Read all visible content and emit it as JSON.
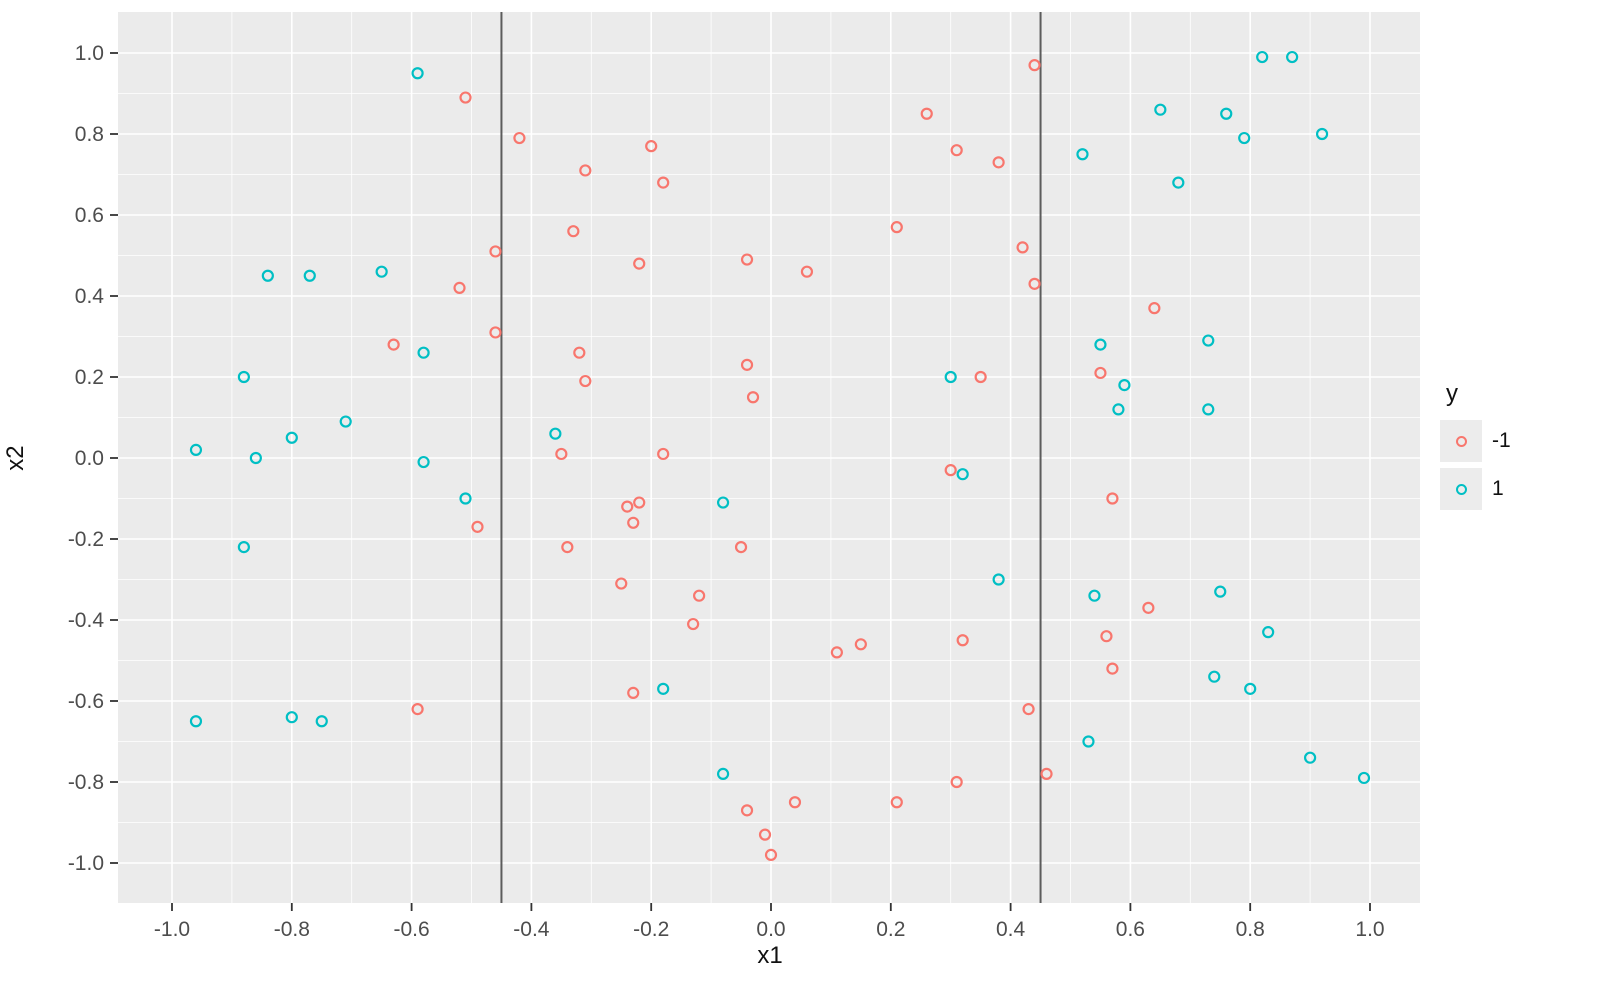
{
  "chart_data": {
    "type": "scatter",
    "title": "",
    "xlabel": "x1",
    "ylabel": "x2",
    "xlim": [
      -1.09,
      1.09
    ],
    "ylim": [
      -1.1,
      1.1
    ],
    "grid": "major and minor white gridlines on gray panel",
    "legend_position": "right",
    "legend": {
      "title": "y",
      "entries": [
        {
          "label": "-1",
          "color": "#F8766D"
        },
        {
          "label": "1",
          "color": "#00BFC4"
        }
      ]
    },
    "x_ticks": {
      "values": [
        -1.0,
        -0.8,
        -0.6,
        -0.4,
        -0.2,
        0.0,
        0.2,
        0.4,
        0.6,
        0.8,
        1.0
      ],
      "labels": [
        "-1.0",
        "-0.8",
        "-0.6",
        "-0.4",
        "-0.2",
        "0.0",
        "0.2",
        "0.4",
        "0.6",
        "0.8",
        "1.0"
      ]
    },
    "y_ticks": {
      "values": [
        -1.0,
        -0.8,
        -0.6,
        -0.4,
        -0.2,
        0.0,
        0.2,
        0.4,
        0.6,
        0.8,
        1.0
      ],
      "labels": [
        "-1.0",
        "-0.8",
        "-0.6",
        "-0.4",
        "-0.2",
        "0.0",
        "0.2",
        "0.4",
        "0.6",
        "0.8",
        "1.0"
      ]
    },
    "vlines": [
      {
        "x": -0.45,
        "color": "#5c5c5c"
      },
      {
        "x": 0.45,
        "color": "#5c5c5c"
      }
    ],
    "series": [
      {
        "name": "-1",
        "color": "#F8766D",
        "points": [
          [
            -0.51,
            0.89
          ],
          [
            -0.42,
            0.79
          ],
          [
            -0.46,
            0.51
          ],
          [
            -0.52,
            0.42
          ],
          [
            0.26,
            0.85
          ],
          [
            0.31,
            0.76
          ],
          [
            -0.2,
            0.77
          ],
          [
            -0.31,
            0.71
          ],
          [
            -0.18,
            0.68
          ],
          [
            -0.33,
            0.56
          ],
          [
            0.21,
            0.57
          ],
          [
            -0.22,
            0.48
          ],
          [
            -0.04,
            0.49
          ],
          [
            0.06,
            0.46
          ],
          [
            0.44,
            0.97
          ],
          [
            0.38,
            0.73
          ],
          [
            0.42,
            0.52
          ],
          [
            0.44,
            0.43
          ],
          [
            -0.63,
            0.28
          ],
          [
            -0.46,
            0.31
          ],
          [
            -0.49,
            -0.17
          ],
          [
            -0.32,
            0.26
          ],
          [
            -0.31,
            0.19
          ],
          [
            -0.04,
            0.23
          ],
          [
            -0.03,
            0.15
          ],
          [
            0.35,
            0.2
          ],
          [
            -0.18,
            0.01
          ],
          [
            -0.35,
            0.01
          ],
          [
            -0.22,
            -0.11
          ],
          [
            -0.24,
            -0.12
          ],
          [
            -0.23,
            -0.16
          ],
          [
            -0.34,
            -0.22
          ],
          [
            -0.05,
            -0.22
          ],
          [
            -0.25,
            -0.31
          ],
          [
            0.3,
            -0.03
          ],
          [
            0.64,
            0.37
          ],
          [
            0.55,
            0.21
          ],
          [
            0.57,
            -0.1
          ],
          [
            -0.59,
            -0.62
          ],
          [
            -0.12,
            -0.34
          ],
          [
            -0.13,
            -0.41
          ],
          [
            -0.23,
            -0.58
          ],
          [
            0.15,
            -0.46
          ],
          [
            0.11,
            -0.48
          ],
          [
            0.32,
            -0.45
          ],
          [
            -0.04,
            -0.87
          ],
          [
            0.04,
            -0.85
          ],
          [
            -0.01,
            -0.93
          ],
          [
            0.0,
            -0.98
          ],
          [
            0.21,
            -0.85
          ],
          [
            0.31,
            -0.8
          ],
          [
            0.63,
            -0.37
          ],
          [
            0.56,
            -0.44
          ],
          [
            0.57,
            -0.52
          ],
          [
            0.43,
            -0.62
          ],
          [
            0.46,
            -0.78
          ]
        ]
      },
      {
        "name": "1",
        "color": "#00BFC4",
        "points": [
          [
            -0.59,
            0.95
          ],
          [
            -0.84,
            0.45
          ],
          [
            -0.77,
            0.45
          ],
          [
            -0.65,
            0.46
          ],
          [
            0.82,
            0.99
          ],
          [
            0.87,
            0.99
          ],
          [
            0.65,
            0.86
          ],
          [
            0.76,
            0.85
          ],
          [
            0.92,
            0.8
          ],
          [
            0.79,
            0.79
          ],
          [
            0.52,
            0.75
          ],
          [
            0.68,
            0.68
          ],
          [
            -0.88,
            0.2
          ],
          [
            -0.58,
            0.26
          ],
          [
            -0.96,
            0.02
          ],
          [
            -0.86,
            0.0
          ],
          [
            -0.8,
            0.05
          ],
          [
            -0.71,
            0.09
          ],
          [
            -0.58,
            -0.01
          ],
          [
            -0.51,
            -0.1
          ],
          [
            -0.88,
            -0.22
          ],
          [
            -0.36,
            0.06
          ],
          [
            -0.08,
            -0.11
          ],
          [
            0.32,
            -0.04
          ],
          [
            0.55,
            0.28
          ],
          [
            0.73,
            0.29
          ],
          [
            0.59,
            0.18
          ],
          [
            0.58,
            0.12
          ],
          [
            0.73,
            0.12
          ],
          [
            0.3,
            0.2
          ],
          [
            0.38,
            -0.3
          ],
          [
            0.54,
            -0.34
          ],
          [
            0.75,
            -0.33
          ],
          [
            -0.96,
            -0.65
          ],
          [
            -0.8,
            -0.64
          ],
          [
            -0.75,
            -0.65
          ],
          [
            -0.18,
            -0.57
          ],
          [
            -0.08,
            -0.78
          ],
          [
            0.83,
            -0.43
          ],
          [
            0.74,
            -0.54
          ],
          [
            0.8,
            -0.57
          ],
          [
            0.53,
            -0.7
          ],
          [
            0.9,
            -0.74
          ],
          [
            0.99,
            -0.79
          ]
        ]
      }
    ]
  },
  "style": {
    "panel_background": "#ebebeb",
    "grid_color": "#ffffff",
    "vline_color": "#5c5c5c",
    "tick_mark_color": "#333333",
    "tick_label_color": "#4d4d4d",
    "title_color": "#111111",
    "legend_key_background": "#ececec",
    "point_radius": 5,
    "point_stroke_width": 2.2
  }
}
